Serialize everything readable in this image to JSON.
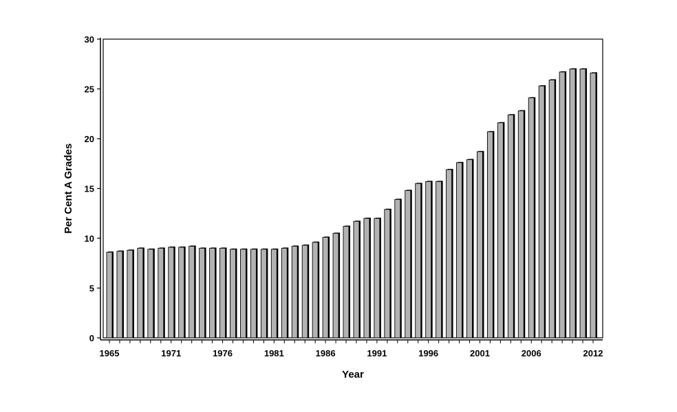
{
  "chart_data": {
    "type": "bar",
    "title": "",
    "xlabel": "Year",
    "ylabel": "Per Cent A Grades",
    "ylim": [
      0,
      30
    ],
    "yticks": [
      0,
      5,
      10,
      15,
      20,
      25,
      30
    ],
    "xticks": [
      1965,
      1971,
      1976,
      1981,
      1986,
      1991,
      1996,
      2001,
      2006,
      2012
    ],
    "grid": false,
    "legend": "none",
    "bar_color": "#b3b3b3",
    "shadow_color": "#000000",
    "categories": [
      1965,
      1966,
      1967,
      1968,
      1969,
      1970,
      1971,
      1972,
      1973,
      1974,
      1975,
      1976,
      1977,
      1978,
      1979,
      1980,
      1981,
      1982,
      1983,
      1984,
      1985,
      1986,
      1987,
      1988,
      1989,
      1990,
      1991,
      1992,
      1993,
      1994,
      1995,
      1996,
      1997,
      1998,
      1999,
      2000,
      2001,
      2002,
      2003,
      2004,
      2005,
      2006,
      2007,
      2008,
      2009,
      2010,
      2011,
      2012
    ],
    "values": [
      8.6,
      8.7,
      8.8,
      9.0,
      8.9,
      9.0,
      9.1,
      9.1,
      9.2,
      9.0,
      9.0,
      9.0,
      8.9,
      8.9,
      8.9,
      8.9,
      8.9,
      9.0,
      9.2,
      9.3,
      9.6,
      10.1,
      10.5,
      11.2,
      11.7,
      12.0,
      12.0,
      12.9,
      13.9,
      14.8,
      15.5,
      15.7,
      15.7,
      16.9,
      17.6,
      17.9,
      18.7,
      20.7,
      21.6,
      22.4,
      22.8,
      24.1,
      25.3,
      25.9,
      26.7,
      27.0,
      27.0,
      26.6
    ]
  }
}
